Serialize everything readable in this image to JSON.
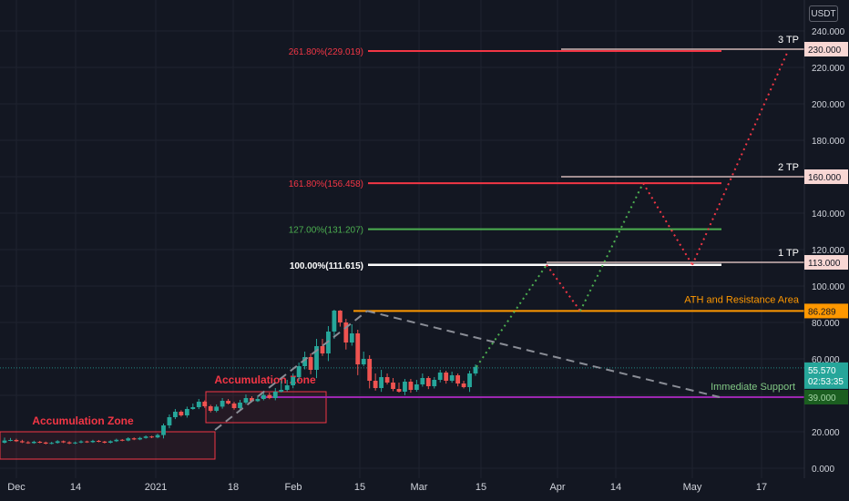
{
  "currency": "USDT",
  "colors": {
    "background": "#131722",
    "axis_text": "#d1d4dc",
    "up": "#26a69a",
    "down": "#ef5350",
    "grid": "#1f2330",
    "fib_261": "#f23645",
    "fib_161": "#f23645",
    "fib_127": "#4caf50",
    "fib_100": "#ffffff",
    "ath": "#ff9800",
    "support": "#9c27b0",
    "tp_box": "#f8d7d4",
    "price_badge": "#26a69a",
    "zone": "#f23645"
  },
  "chart_data": {
    "type": "candlestick",
    "ylim": [
      0,
      240
    ],
    "y_ticks": [
      "0.000",
      "20.000",
      "40.000",
      "60.000",
      "80.000",
      "100.000",
      "120.000",
      "140.000",
      "160.000",
      "180.000",
      "200.000",
      "220.000",
      "240.000"
    ],
    "x_ticks": [
      "Dec",
      "14",
      "2021",
      "18",
      "Feb",
      "15",
      "Mar",
      "15",
      "Apr",
      "14",
      "May",
      "17"
    ],
    "fib_levels": [
      {
        "label": "261.80%(229.019)",
        "value": 229.019
      },
      {
        "label": "161.80%(156.458)",
        "value": 156.458
      },
      {
        "label": "127.00%(131.207)",
        "value": 131.207
      },
      {
        "label": "100.00%(111.615)",
        "value": 111.615
      }
    ],
    "targets": [
      {
        "label": "3 TP",
        "value": "230.000"
      },
      {
        "label": "2 TP",
        "value": "160.000"
      },
      {
        "label": "1 TP",
        "value": "113.000"
      }
    ],
    "resistance": {
      "label": "ATH and Resistance Area",
      "value": "86.289"
    },
    "support": {
      "label": "Immediate Support",
      "value": "39.000"
    },
    "last_price": "55.570",
    "countdown": "02:53:35",
    "zones": [
      {
        "label": "Accumulation Zone",
        "low": 5,
        "high": 20
      },
      {
        "label": "Accumulation Zone",
        "low": 25,
        "high": 42
      }
    ],
    "candles": [
      [
        14,
        15.2,
        16.8
      ],
      [
        15.2,
        15.5,
        16.6
      ],
      [
        15.5,
        14.8,
        16.2
      ],
      [
        14.8,
        14.2,
        15.6
      ],
      [
        14.2,
        13.8,
        14.9
      ],
      [
        13.8,
        14.5,
        15.1
      ],
      [
        14.5,
        14.1,
        15.0
      ],
      [
        14.1,
        13.5,
        14.6
      ],
      [
        13.5,
        13.9,
        14.5
      ],
      [
        13.9,
        14.8,
        15.4
      ],
      [
        14.8,
        14.2,
        15.2
      ],
      [
        14.2,
        13.6,
        14.8
      ],
      [
        13.6,
        14.1,
        14.6
      ],
      [
        14.1,
        14.7,
        15.3
      ],
      [
        14.7,
        14.3,
        15.1
      ],
      [
        14.3,
        15.0,
        15.6
      ],
      [
        15.0,
        14.6,
        15.5
      ],
      [
        14.6,
        14.0,
        15.0
      ],
      [
        14.0,
        14.8,
        15.3
      ],
      [
        14.8,
        15.6,
        16.2
      ],
      [
        15.6,
        15.2,
        16.0
      ],
      [
        15.2,
        16.4,
        17.0
      ],
      [
        16.4,
        15.8,
        16.9
      ],
      [
        15.8,
        16.6,
        17.2
      ],
      [
        16.6,
        17.4,
        18.0
      ],
      [
        17.4,
        16.9,
        17.8
      ],
      [
        16.9,
        18.2,
        19.0
      ],
      [
        18.2,
        23.5,
        24.5
      ],
      [
        23.5,
        28,
        29.5
      ],
      [
        28,
        31,
        32.5
      ],
      [
        31,
        29,
        31.8
      ],
      [
        29,
        32.5,
        33.8
      ],
      [
        32.5,
        33.5,
        35.5
      ],
      [
        33.5,
        36.5,
        38
      ],
      [
        36.5,
        34,
        37.2
      ],
      [
        34,
        31.5,
        34.8
      ],
      [
        31.5,
        33.8,
        35
      ],
      [
        33.8,
        37,
        38.5
      ],
      [
        37,
        35.5,
        38
      ],
      [
        35.5,
        33,
        36.4
      ],
      [
        33,
        36,
        37.5
      ],
      [
        36,
        38.5,
        40.5
      ],
      [
        38.5,
        36.8,
        39.5
      ],
      [
        36.8,
        38,
        40
      ],
      [
        38,
        40.2,
        42
      ],
      [
        40.2,
        38.5,
        41.5
      ],
      [
        38.5,
        42,
        44
      ],
      [
        42,
        43,
        48
      ],
      [
        43,
        45.5,
        48.5
      ],
      [
        45.5,
        50,
        52
      ],
      [
        50,
        56,
        58
      ],
      [
        56,
        61,
        64
      ],
      [
        61,
        54,
        63
      ],
      [
        54,
        67,
        71
      ],
      [
        67,
        63,
        71
      ],
      [
        63,
        75,
        78
      ],
      [
        75,
        86.5,
        87
      ],
      [
        86.5,
        80,
        86.8
      ],
      [
        80,
        69,
        82
      ],
      [
        69,
        74,
        79
      ],
      [
        74,
        57,
        76
      ],
      [
        57,
        60,
        64
      ],
      [
        60,
        48,
        62
      ],
      [
        48,
        44,
        52
      ],
      [
        44,
        50,
        54
      ],
      [
        50,
        47,
        52
      ],
      [
        47,
        43.5,
        49.5
      ],
      [
        43.5,
        42,
        47
      ],
      [
        42,
        47.5,
        49
      ],
      [
        47.5,
        43,
        49
      ],
      [
        43,
        46,
        48.5
      ],
      [
        46,
        49.5,
        52
      ],
      [
        49.5,
        45,
        50.5
      ],
      [
        45,
        48.5,
        50
      ],
      [
        48.5,
        52.5,
        54
      ],
      [
        52.5,
        48,
        53.5
      ],
      [
        48,
        51,
        53
      ],
      [
        51,
        46.5,
        52
      ],
      [
        46.5,
        44.5,
        48
      ],
      [
        44.5,
        52,
        53.5
      ],
      [
        52,
        55.6,
        57
      ]
    ]
  }
}
